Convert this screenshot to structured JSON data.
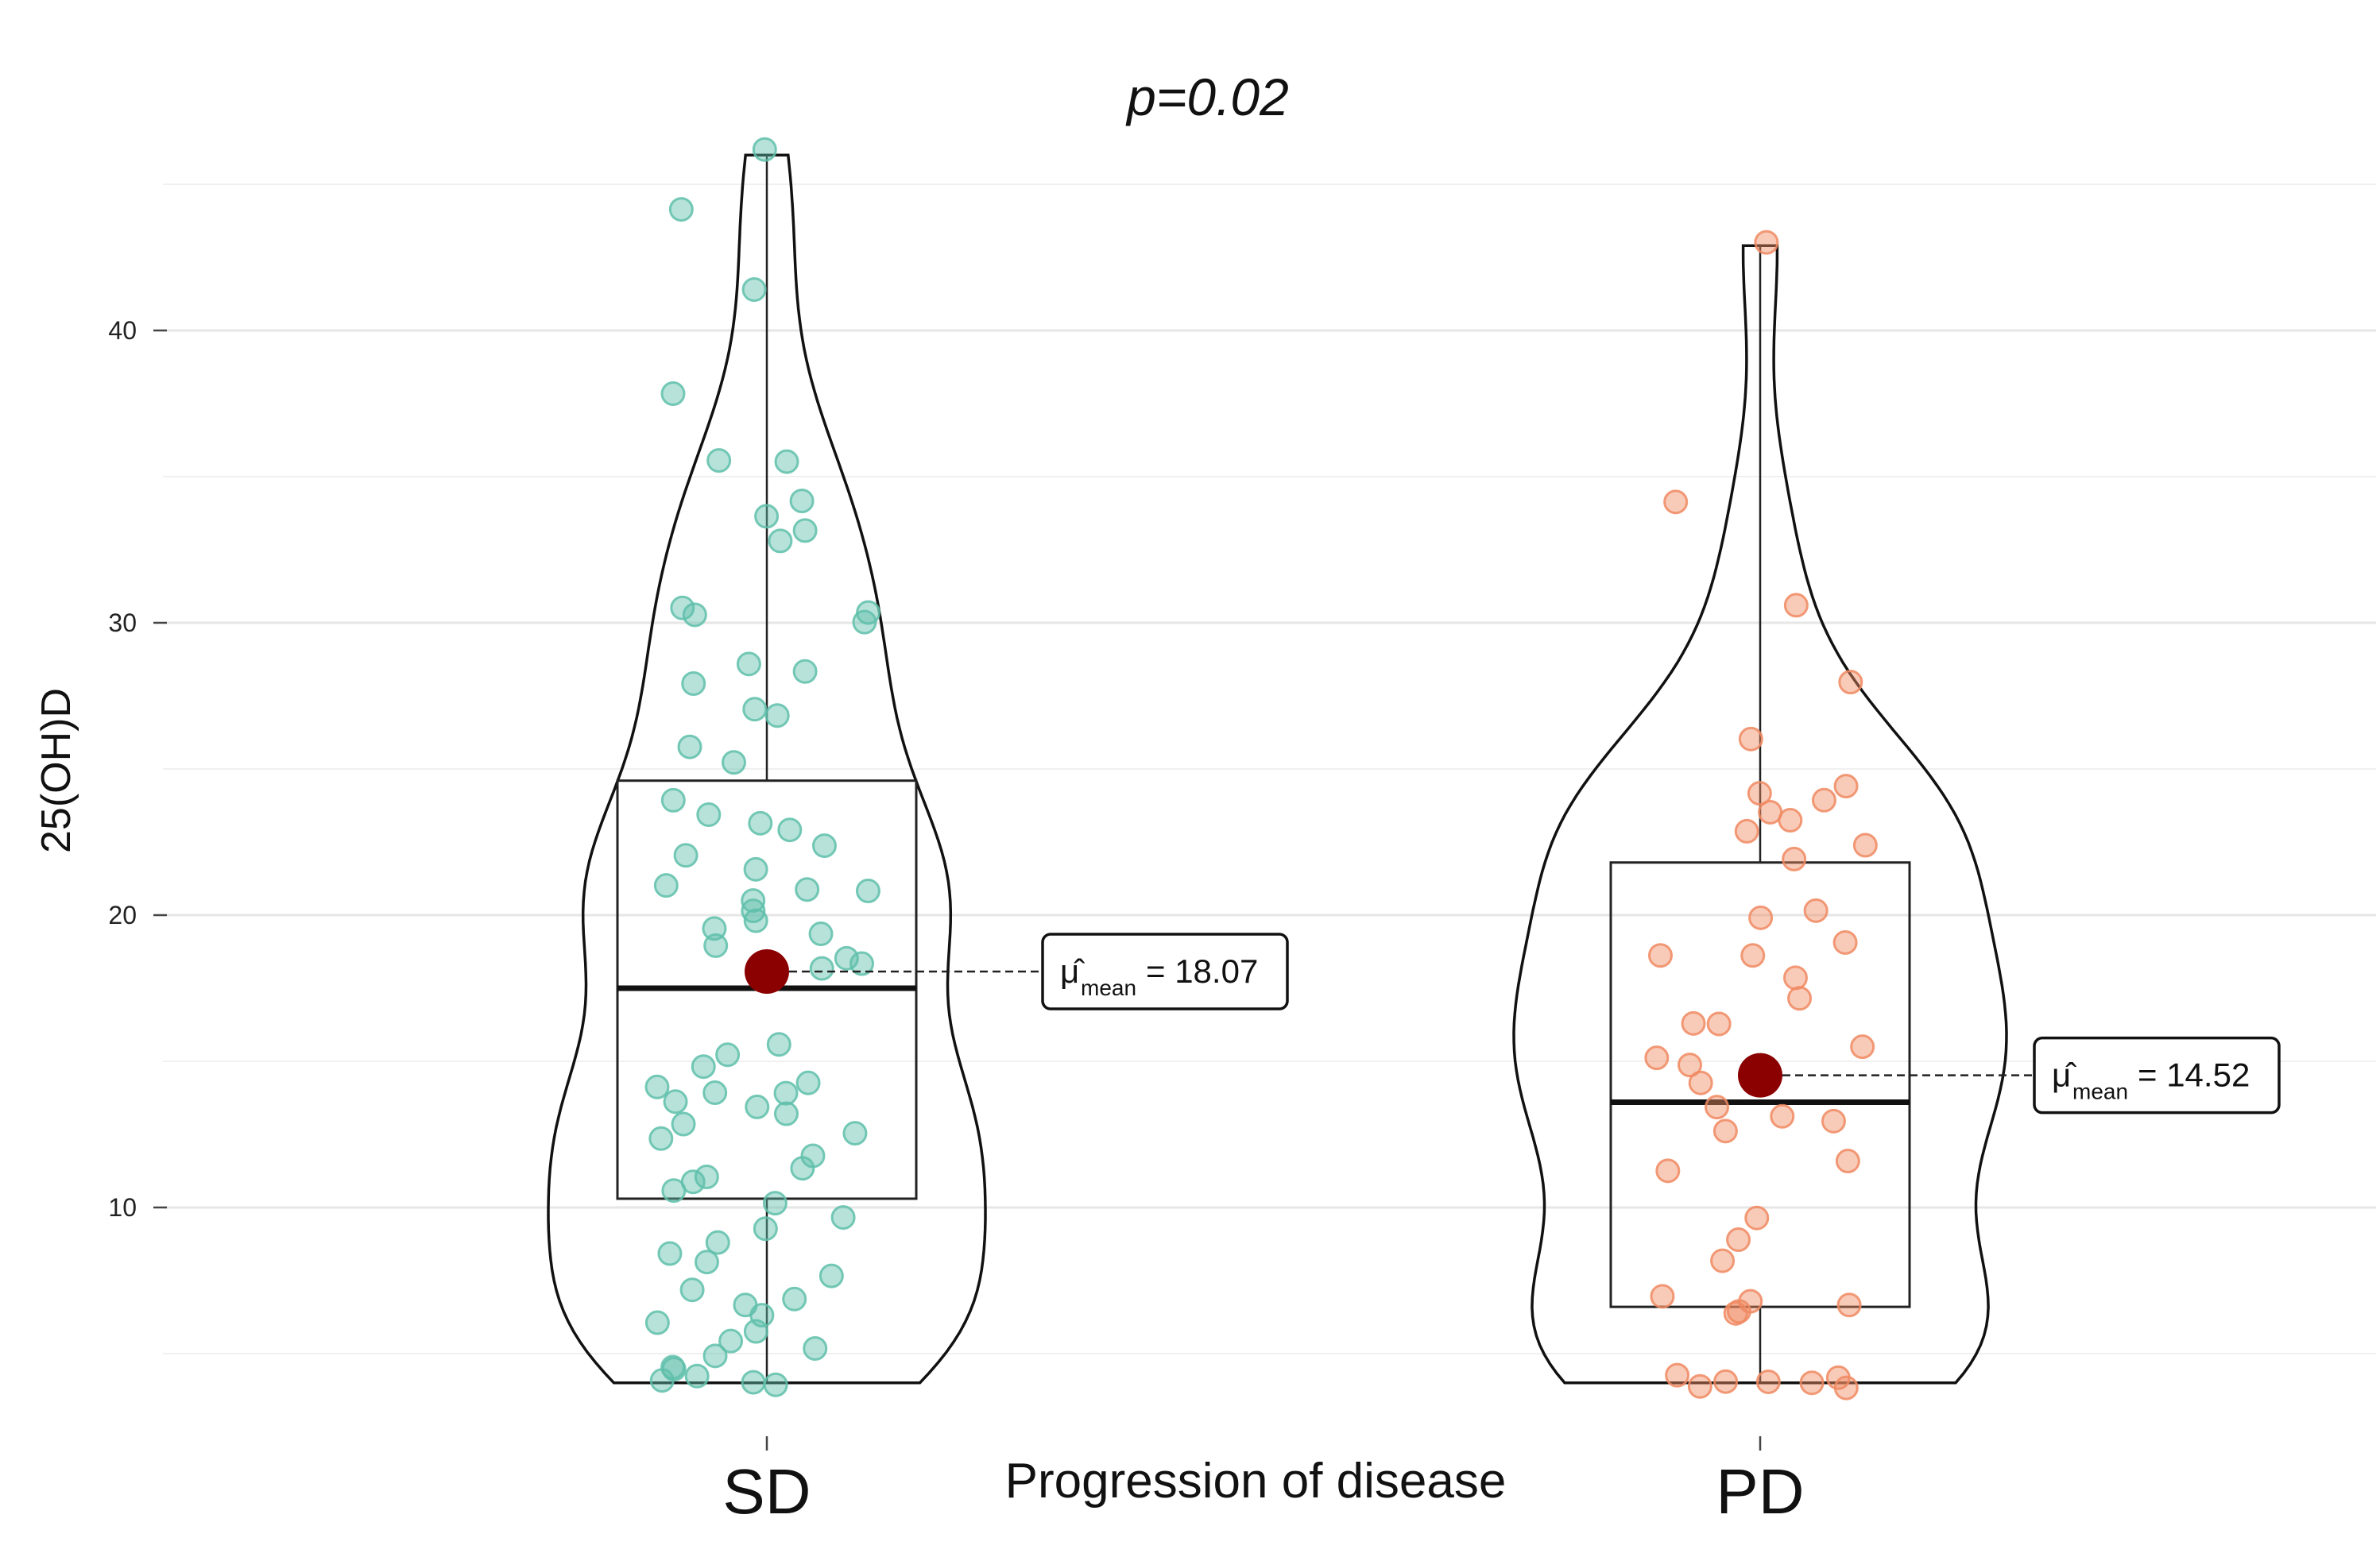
{
  "chart_data": {
    "type": "violin",
    "title": "p=0.02",
    "xlabel": "Progression of disease",
    "ylabel": "25(OH)D",
    "ylim": [
      3,
      47
    ],
    "yticks": [
      10,
      20,
      30,
      40
    ],
    "grid": true,
    "categories": [
      "SD",
      "PD"
    ],
    "groups": [
      {
        "name": "SD",
        "color": "#5fbfaa",
        "min": 4,
        "q1": 10.3,
        "median": 17.5,
        "q3": 24.6,
        "max": 46,
        "mean": 18.07,
        "mean_label_symbol": "μ̂",
        "mean_label_sub": "mean",
        "mean_label_value": "= 18.07",
        "points": [
          46.2,
          44.1,
          41.4,
          37.9,
          35.5,
          35.6,
          34.1,
          33.6,
          33.1,
          32.8,
          30.2,
          30.1,
          30.5,
          30.3,
          28.6,
          28.3,
          28.0,
          27.0,
          26.8,
          25.8,
          25.2,
          24.0,
          23.5,
          23.1,
          22.9,
          22.4,
          22.0,
          21.5,
          21.0,
          20.9,
          20.8,
          20.5,
          20.2,
          19.8,
          19.5,
          19.3,
          19.0,
          18.6,
          18.4,
          18.2,
          15.5,
          15.2,
          14.8,
          14.3,
          14.0,
          14.1,
          13.9,
          13.7,
          13.5,
          13.2,
          12.9,
          12.5,
          12.3,
          11.8,
          11.4,
          11.1,
          10.8,
          10.5,
          10.2,
          9.6,
          9.2,
          8.8,
          8.4,
          8.1,
          7.6,
          7.1,
          6.8,
          6.6,
          6.3,
          6.1,
          5.8,
          5.5,
          5.2,
          4.9,
          4.6,
          4.4,
          4.2,
          4.1,
          4.0,
          4.0
        ]
      },
      {
        "name": "PD",
        "color": "#f08a62",
        "min": 4,
        "q1": 6.6,
        "median": 13.6,
        "q3": 21.8,
        "max": 42.9,
        "mean": 14.52,
        "mean_label_symbol": "μ̂",
        "mean_label_sub": "mean",
        "mean_label_value": "= 14.52",
        "points": [
          43.0,
          34.2,
          30.6,
          28.0,
          26.1,
          24.4,
          24.2,
          24.0,
          23.6,
          23.3,
          22.8,
          22.4,
          21.9,
          20.2,
          19.9,
          19.1,
          18.6,
          18.7,
          17.8,
          17.1,
          16.3,
          16.2,
          15.5,
          15.1,
          14.9,
          14.3,
          13.5,
          13.1,
          12.9,
          12.6,
          11.6,
          11.2,
          9.6,
          8.9,
          8.1,
          7.0,
          6.8,
          6.6,
          6.4,
          6.3,
          4.3,
          4.1,
          4.0,
          4.0,
          4.0,
          3.9,
          3.9
        ]
      }
    ]
  }
}
